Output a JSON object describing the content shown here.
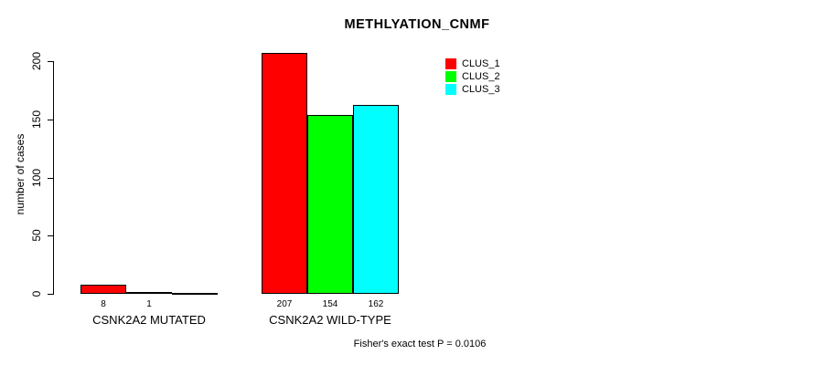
{
  "chart_data": {
    "type": "bar",
    "title": "METHLYATION_CNMF",
    "ylabel": "number of cases",
    "ylim": [
      0,
      200
    ],
    "yticks": [
      0,
      50,
      100,
      150,
      200
    ],
    "ytick_labels": [
      "0",
      "50",
      "100",
      "150",
      "200"
    ],
    "grid": false,
    "legend_position": "top-right",
    "series": [
      {
        "name": "CLUS_1",
        "color": "#FF0000"
      },
      {
        "name": "CLUS_2",
        "color": "#00FF00"
      },
      {
        "name": "CLUS_3",
        "color": "#00FFFF"
      }
    ],
    "groups": [
      {
        "label": "CSNK2A2 MUTATED",
        "values": [
          8,
          1,
          0
        ],
        "value_labels": [
          "8",
          "1",
          ""
        ]
      },
      {
        "label": "CSNK2A2 WILD-TYPE",
        "values": [
          207,
          154,
          162
        ],
        "value_labels": [
          "207",
          "154",
          "162"
        ]
      }
    ],
    "footnote": "Fisher's exact test P = 0.0106",
    "bar_border_color": "#000000"
  }
}
